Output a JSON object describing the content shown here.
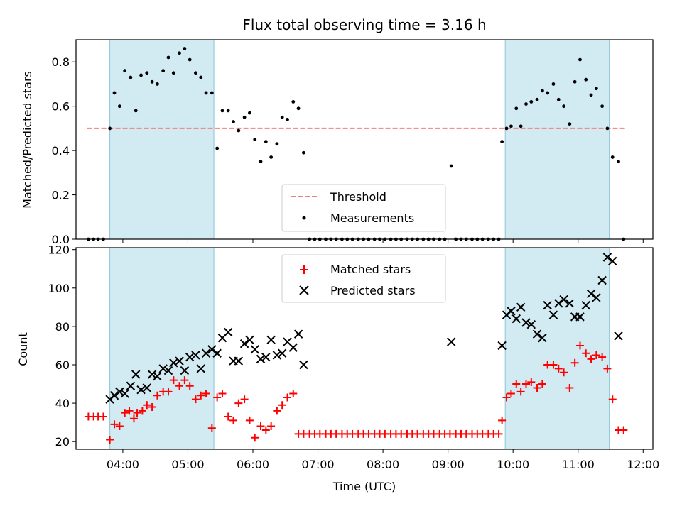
{
  "chart_data": {
    "type": "scatter",
    "title": "Flux total observing time = 3.16 h",
    "xlabel": "Time (UTC)",
    "x_tick_labels": [
      "04:00",
      "05:00",
      "06:00",
      "07:00",
      "08:00",
      "09:00",
      "10:00",
      "11:00",
      "12:00"
    ],
    "x_ticks_hours": [
      4,
      5,
      6,
      7,
      8,
      9,
      10,
      11,
      12
    ],
    "xlim_hours": [
      3.28,
      12.15
    ],
    "shaded_spans_hours": [
      [
        3.8,
        5.4
      ],
      [
        9.88,
        11.48
      ]
    ],
    "shade_color": "#add8e6",
    "panels": [
      {
        "ylabel": "Matched/Predicted stars",
        "ylim": [
          0,
          0.9
        ],
        "y_ticks": [
          0.0,
          0.2,
          0.4,
          0.6,
          0.8
        ],
        "y_tick_labels": [
          "0.0",
          "0.2",
          "0.4",
          "0.6",
          "0.8"
        ],
        "legend_position": "lower-center",
        "threshold": {
          "name": "Threshold",
          "y": 0.5,
          "x_start": 3.45,
          "x_end": 11.73,
          "color": "#f08080"
        },
        "series": [
          {
            "name": "Measurements",
            "marker": "dot",
            "color": "#000000",
            "x": [
              3.47,
              3.55,
              3.62,
              3.7,
              3.8,
              3.87,
              3.95,
              4.03,
              4.12,
              4.2,
              4.28,
              4.37,
              4.45,
              4.53,
              4.62,
              4.7,
              4.78,
              4.87,
              4.95,
              5.03,
              5.12,
              5.2,
              5.28,
              5.37,
              5.45,
              5.53,
              5.62,
              5.7,
              5.78,
              5.87,
              5.95,
              6.03,
              6.12,
              6.2,
              6.28,
              6.37,
              6.45,
              6.53,
              6.62,
              6.7,
              6.78,
              6.87,
              6.95,
              7.03,
              7.12,
              7.2,
              7.28,
              7.37,
              7.45,
              7.53,
              7.62,
              7.7,
              7.78,
              7.87,
              7.95,
              8.03,
              8.12,
              8.2,
              8.28,
              8.37,
              8.45,
              8.53,
              8.62,
              8.7,
              8.78,
              8.87,
              8.95,
              9.05,
              9.12,
              9.2,
              9.28,
              9.37,
              9.45,
              9.53,
              9.62,
              9.7,
              9.78,
              9.83,
              9.9,
              9.97,
              10.05,
              10.12,
              10.2,
              10.28,
              10.37,
              10.45,
              10.53,
              10.62,
              10.7,
              10.78,
              10.87,
              10.95,
              11.03,
              11.12,
              11.2,
              11.28,
              11.37,
              11.45,
              11.53,
              11.62,
              11.7
            ],
            "y": [
              0,
              0,
              0,
              0,
              0.5,
              0.66,
              0.6,
              0.76,
              0.73,
              0.58,
              0.74,
              0.75,
              0.71,
              0.7,
              0.76,
              0.82,
              0.75,
              0.84,
              0.86,
              0.81,
              0.75,
              0.73,
              0.66,
              0.66,
              0.41,
              0.58,
              0.58,
              0.53,
              0.49,
              0.55,
              0.57,
              0.45,
              0.35,
              0.44,
              0.37,
              0.43,
              0.55,
              0.54,
              0.62,
              0.59,
              0.39,
              0,
              0,
              0,
              0,
              0,
              0,
              0,
              0,
              0,
              0,
              0,
              0,
              0,
              0,
              0,
              0,
              0,
              0,
              0,
              0,
              0,
              0,
              0,
              0,
              0,
              0,
              0.33,
              0,
              0,
              0,
              0,
              0,
              0,
              0,
              0,
              0,
              0.44,
              0.5,
              0.51,
              0.59,
              0.51,
              0.61,
              0.62,
              0.63,
              0.67,
              0.66,
              0.7,
              0.63,
              0.6,
              0.52,
              0.71,
              0.81,
              0.72,
              0.65,
              0.68,
              0.6,
              0.5,
              0.37,
              0.35,
              0
            ]
          }
        ]
      },
      {
        "ylabel": "Count",
        "ylim": [
          16,
          121
        ],
        "y_ticks": [
          20,
          40,
          60,
          80,
          100,
          120
        ],
        "y_tick_labels": [
          "20",
          "40",
          "60",
          "80",
          "100",
          "120"
        ],
        "legend_position": "upper-center",
        "series": [
          {
            "name": "Matched stars",
            "marker": "plus",
            "color": "#ff0000",
            "x": [
              3.47,
              3.55,
              3.62,
              3.7,
              3.8,
              3.87,
              3.95,
              4.03,
              4.1,
              4.17,
              4.22,
              4.3,
              4.37,
              4.45,
              4.53,
              4.62,
              4.7,
              4.78,
              4.87,
              4.95,
              5.03,
              5.12,
              5.2,
              5.28,
              5.37,
              5.45,
              5.53,
              5.62,
              5.7,
              5.78,
              5.87,
              5.95,
              6.03,
              6.12,
              6.2,
              6.28,
              6.37,
              6.45,
              6.53,
              6.62,
              6.7,
              6.78,
              6.87,
              6.95,
              7.03,
              7.12,
              7.2,
              7.28,
              7.37,
              7.45,
              7.53,
              7.62,
              7.7,
              7.78,
              7.87,
              7.95,
              8.03,
              8.12,
              8.2,
              8.28,
              8.37,
              8.45,
              8.53,
              8.62,
              8.7,
              8.78,
              8.87,
              8.95,
              9.03,
              9.12,
              9.2,
              9.28,
              9.37,
              9.45,
              9.53,
              9.62,
              9.7,
              9.78,
              9.83,
              9.9,
              9.97,
              10.05,
              10.12,
              10.2,
              10.28,
              10.37,
              10.45,
              10.53,
              10.62,
              10.7,
              10.78,
              10.87,
              10.95,
              11.03,
              11.12,
              11.2,
              11.28,
              11.37,
              11.45,
              11.53,
              11.62,
              11.7
            ],
            "y": [
              33,
              33,
              33,
              33,
              21,
              29,
              28,
              35,
              36,
              32,
              35,
              36,
              39,
              38,
              44,
              46,
              46,
              52,
              49,
              52,
              49,
              42,
              44,
              45,
              27,
              43,
              45,
              33,
              31,
              40,
              42,
              31,
              22,
              28,
              26,
              28,
              36,
              39,
              43,
              45,
              24,
              24,
              24,
              24,
              24,
              24,
              24,
              24,
              24,
              24,
              24,
              24,
              24,
              24,
              24,
              24,
              24,
              24,
              24,
              24,
              24,
              24,
              24,
              24,
              24,
              24,
              24,
              24,
              24,
              24,
              24,
              24,
              24,
              24,
              24,
              24,
              24,
              24,
              31,
              43,
              45,
              50,
              46,
              50,
              51,
              48,
              50,
              60,
              60,
              58,
              56,
              48,
              61,
              70,
              66,
              63,
              65,
              64,
              58,
              42,
              26,
              26
            ]
          },
          {
            "name": "Predicted stars",
            "marker": "cross",
            "color": "#000000",
            "x": [
              3.8,
              3.87,
              3.95,
              4.03,
              4.12,
              4.2,
              4.28,
              4.37,
              4.45,
              4.53,
              4.62,
              4.7,
              4.78,
              4.87,
              4.95,
              5.03,
              5.12,
              5.2,
              5.28,
              5.37,
              5.45,
              5.53,
              5.62,
              5.7,
              5.78,
              5.87,
              5.95,
              6.03,
              6.12,
              6.2,
              6.28,
              6.37,
              6.45,
              6.53,
              6.62,
              6.7,
              6.78,
              9.05,
              9.83,
              9.9,
              9.97,
              10.05,
              10.12,
              10.2,
              10.28,
              10.37,
              10.45,
              10.53,
              10.62,
              10.7,
              10.78,
              10.87,
              10.95,
              11.03,
              11.12,
              11.2,
              11.28,
              11.37,
              11.45,
              11.53,
              11.62
            ],
            "y": [
              42,
              44,
              46,
              45,
              49,
              55,
              47,
              48,
              55,
              54,
              58,
              57,
              61,
              62,
              57,
              64,
              65,
              58,
              66,
              68,
              66,
              74,
              77,
              62,
              62,
              71,
              73,
              68,
              63,
              64,
              73,
              65,
              66,
              72,
              69,
              76,
              60,
              72,
              70,
              86,
              88,
              84,
              90,
              82,
              81,
              76,
              74,
              91,
              86,
              92,
              94,
              92,
              85,
              85,
              91,
              97,
              95,
              104,
              116,
              114,
              75
            ]
          }
        ]
      }
    ]
  }
}
